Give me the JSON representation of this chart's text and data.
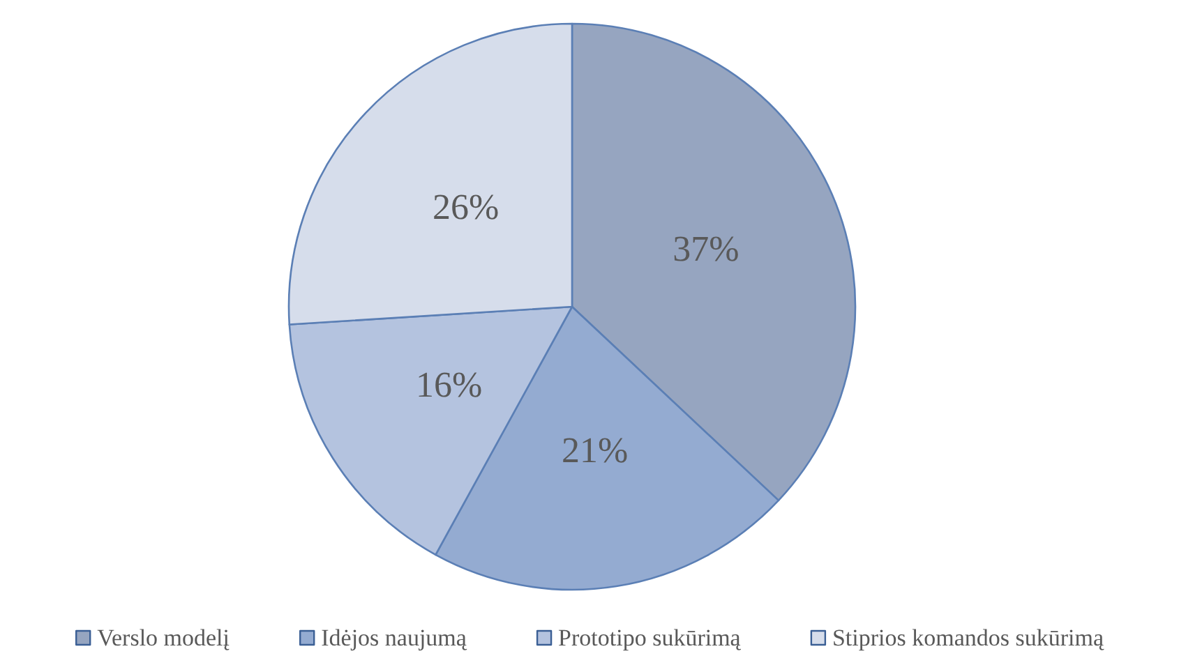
{
  "chart_data": {
    "type": "pie",
    "categories": [
      "Verslo modelį",
      "Idėjos naujumą",
      "Prototipo sukūrimą",
      "Stiprios komandos sukūrimą"
    ],
    "values": [
      37,
      21,
      16,
      26
    ],
    "value_labels": [
      "37%",
      "21%",
      "16%",
      "26%"
    ],
    "colors": [
      "#96a5c0",
      "#94abd1",
      "#b4c3df",
      "#d6ddeb"
    ],
    "legend": "bottom"
  }
}
